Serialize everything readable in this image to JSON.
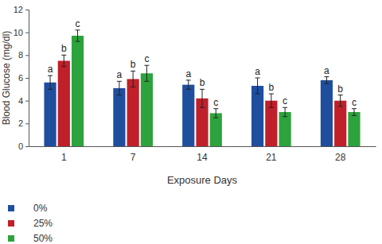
{
  "chart_data": {
    "type": "bar",
    "x_label": "Exposure Days",
    "y_label": "Blood Glucose (mg/dl)",
    "categories": [
      "1",
      "7",
      "14",
      "21",
      "28"
    ],
    "series": [
      {
        "name": "0%",
        "color": "#1f4e9f",
        "values": [
          5.6,
          5.1,
          5.4,
          5.3,
          5.8
        ],
        "errors": [
          0.6,
          0.6,
          0.4,
          0.7,
          0.3
        ],
        "annotations": [
          "a",
          "a",
          "a",
          "a",
          "a"
        ]
      },
      {
        "name": "25%",
        "color": "#c0202a",
        "values": [
          7.5,
          5.9,
          4.2,
          4.0,
          4.0
        ],
        "errors": [
          0.5,
          0.7,
          0.8,
          0.6,
          0.5
        ],
        "annotations": [
          "b",
          "b",
          "b",
          "b",
          "b"
        ]
      },
      {
        "name": "50%",
        "color": "#2ca33c",
        "values": [
          9.7,
          6.4,
          2.9,
          3.0,
          3.0
        ],
        "errors": [
          0.5,
          0.7,
          0.4,
          0.4,
          0.3
        ],
        "annotations": [
          "c",
          "c",
          "c",
          "c",
          "c"
        ]
      }
    ],
    "ylim": [
      0,
      12
    ],
    "yticks": [
      0,
      2,
      4,
      6,
      8,
      10,
      12
    ],
    "grid": false,
    "legend": "bottom-left"
  }
}
